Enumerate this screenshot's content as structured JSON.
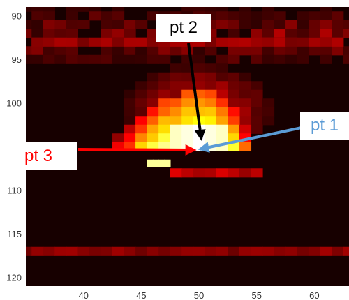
{
  "chart_data": {
    "type": "heatmap",
    "title": "",
    "xlabel": "",
    "ylabel": "",
    "x_range": [
      35,
      63
    ],
    "y_range": [
      89,
      121
    ],
    "y_reversed": true,
    "colormap": "hot",
    "x_ticks": [
      40,
      45,
      50,
      55,
      60
    ],
    "y_ticks": [
      90,
      95,
      100,
      105,
      110,
      115,
      120
    ],
    "hot_region": {
      "center": {
        "x": 50,
        "y": 104.5
      },
      "peak_level": 1.0,
      "columns": [
        {
          "x": 43,
          "top": 104,
          "level": 0.35
        },
        {
          "x": 44,
          "top": 103,
          "level": 0.5
        },
        {
          "x": 45,
          "top": 102,
          "level": 0.7
        },
        {
          "x": 46,
          "top": 101,
          "level": 0.82
        },
        {
          "x": 47,
          "top": 100,
          "level": 0.9
        },
        {
          "x": 48,
          "top": 100,
          "level": 0.95
        },
        {
          "x": 49,
          "top": 99,
          "level": 1.0
        },
        {
          "x": 50,
          "top": 99,
          "level": 1.0
        },
        {
          "x": 51,
          "top": 99,
          "level": 0.97
        },
        {
          "x": 52,
          "top": 100,
          "level": 0.9
        },
        {
          "x": 53,
          "top": 101,
          "level": 0.8
        },
        {
          "x": 54,
          "top": 103,
          "level": 0.55
        }
      ],
      "bright_patch": {
        "x": [
          46,
          47.5
        ],
        "y": 107,
        "level": 0.9
      },
      "faint_rows": [
        {
          "y": 93,
          "x": [
            36,
            62
          ],
          "level": 0.25
        },
        {
          "y": 108,
          "x": [
            48,
            55
          ],
          "level": 0.32
        },
        {
          "y": 117,
          "x": [
            35,
            63
          ],
          "level": 0.22
        }
      ]
    },
    "annotations": [
      {
        "label": "pt 1",
        "color": "#5b9bd5",
        "target": {
          "x": 50.1,
          "y": 105.3
        }
      },
      {
        "label": "pt 2",
        "color": "#000000",
        "target": {
          "x": 50.2,
          "y": 104.1
        }
      },
      {
        "label": "pt 3",
        "color": "#ff0000",
        "target": {
          "x": 49.6,
          "y": 105.4
        }
      }
    ]
  },
  "labels": {
    "pt1": "pt 1",
    "pt2": "pt 2",
    "pt3": "pt 3"
  },
  "colors": {
    "pt1": "#5b9bd5",
    "pt2": "#000000",
    "pt3": "#ff0000",
    "background": "#170000"
  }
}
